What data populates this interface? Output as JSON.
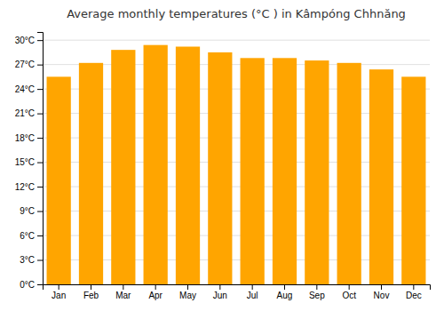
{
  "chart_data": {
    "type": "bar",
    "title": "Average monthly temperatures (°C ) in Kâmpóng Chhnăng",
    "categories": [
      "Jan",
      "Feb",
      "Mar",
      "Apr",
      "May",
      "Jun",
      "Jul",
      "Aug",
      "Sep",
      "Oct",
      "Nov",
      "Dec"
    ],
    "values": [
      25.5,
      27.2,
      28.8,
      29.4,
      29.2,
      28.5,
      27.8,
      27.8,
      27.5,
      27.2,
      26.4,
      25.5
    ],
    "color": "#FFA500",
    "ylim": [
      0,
      31
    ],
    "yticks": [
      {
        "value": 0,
        "label": "0°C"
      },
      {
        "value": 3,
        "label": "3°C"
      },
      {
        "value": 6,
        "label": "6°C"
      },
      {
        "value": 9,
        "label": "9°C"
      },
      {
        "value": 12,
        "label": "12°C"
      },
      {
        "value": 15,
        "label": "15°C"
      },
      {
        "value": 18,
        "label": "18°C"
      },
      {
        "value": 21,
        "label": "21°C"
      },
      {
        "value": 24,
        "label": "24°C"
      },
      {
        "value": 27,
        "label": "27°C"
      },
      {
        "value": 30,
        "label": "30°C"
      }
    ],
    "grid": true
  }
}
